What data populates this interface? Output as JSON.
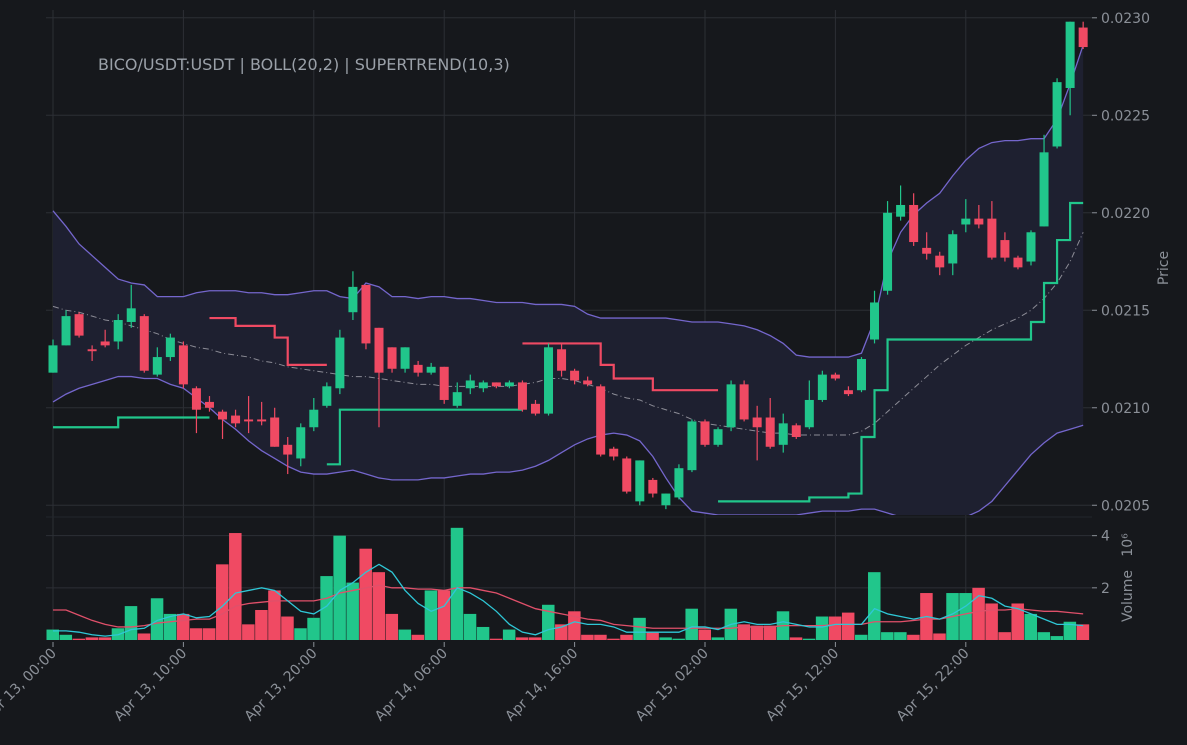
{
  "chart_data": {
    "type": "candlestick",
    "title": "BICO/USDT:USDT | BOLL(20,2) | SUPERTREND(10,3)",
    "ylabel": "Price",
    "categories": [
      "Apr 13, 00:00",
      null,
      null,
      null,
      null,
      null,
      null,
      null,
      null,
      null,
      "Apr 13, 10:00",
      null,
      null,
      null,
      null,
      null,
      null,
      null,
      null,
      null,
      "Apr 13, 20:00",
      null,
      null,
      null,
      null,
      null,
      null,
      null,
      null,
      null,
      "Apr 14, 06:00",
      null,
      null,
      null,
      null,
      null,
      null,
      null,
      null,
      null,
      "Apr 14, 16:00",
      null,
      null,
      null,
      null,
      null,
      null,
      null,
      null,
      null,
      "Apr 15, 02:00",
      null,
      null,
      null,
      null,
      null,
      null,
      null,
      null,
      null,
      "Apr 15, 12:00",
      null,
      null,
      null,
      null,
      null,
      null,
      null,
      null,
      null,
      "Apr 15, 22:00",
      null,
      null,
      null,
      null,
      null,
      null,
      null,
      null,
      null
    ],
    "open": [
      0.02118,
      0.02132,
      0.02148,
      0.0213,
      0.02134,
      0.02134,
      0.02144,
      0.02147,
      0.02117,
      0.02126,
      0.02132,
      0.0211,
      0.02103,
      0.02098,
      0.02096,
      0.02094,
      0.02094,
      0.02095,
      0.02081,
      0.02074,
      0.0209,
      0.02101,
      0.0211,
      0.02149,
      0.02163,
      0.02141,
      0.02131,
      0.0212,
      0.02122,
      0.02118,
      0.02121,
      0.02101,
      0.0211,
      0.0211,
      0.02113,
      0.02111,
      0.02113,
      0.02102,
      0.02097,
      0.0213,
      0.02119,
      0.02114,
      0.02111,
      0.02079,
      0.02074,
      0.02052,
      0.02063,
      0.0205,
      0.02054,
      0.02068,
      0.02093,
      0.02081,
      0.0209,
      0.02112,
      0.02095,
      0.02095,
      0.02081,
      0.02091,
      0.0209,
      0.02104,
      0.02117,
      0.02109,
      0.02109,
      0.02135,
      0.0216,
      0.02198,
      0.02204,
      0.02182,
      0.02178,
      0.02174,
      0.02194,
      0.02197,
      0.02197,
      0.02186,
      0.02177,
      0.02175,
      0.02193,
      0.02234,
      0.02264,
      0.02295
    ],
    "high": [
      0.02135,
      0.0215,
      0.02149,
      0.02132,
      0.0214,
      0.02148,
      0.02163,
      0.02148,
      0.02131,
      0.02138,
      0.02134,
      0.02111,
      0.02106,
      0.02099,
      0.02099,
      0.02106,
      0.02103,
      0.021,
      0.02085,
      0.02092,
      0.02105,
      0.02113,
      0.0214,
      0.0217,
      0.02163,
      0.02141,
      0.02131,
      0.02131,
      0.02124,
      0.02123,
      0.02121,
      0.02113,
      0.02117,
      0.02114,
      0.02113,
      0.02114,
      0.02114,
      0.02104,
      0.02133,
      0.02133,
      0.0212,
      0.02116,
      0.02112,
      0.0208,
      0.02075,
      0.02073,
      0.02064,
      0.02056,
      0.02071,
      0.02094,
      0.02094,
      0.0209,
      0.02114,
      0.02114,
      0.02101,
      0.02105,
      0.02097,
      0.02092,
      0.02114,
      0.02119,
      0.02118,
      0.02111,
      0.02126,
      0.0216,
      0.02206,
      0.02214,
      0.0221,
      0.0219,
      0.0218,
      0.02191,
      0.02207,
      0.02204,
      0.02206,
      0.0219,
      0.02178,
      0.02191,
      0.0224,
      0.02269,
      0.02298,
      0.02298
    ],
    "low": [
      0.02118,
      0.02132,
      0.02136,
      0.02124,
      0.02131,
      0.0213,
      0.02141,
      0.02118,
      0.02116,
      0.02124,
      0.0211,
      0.02087,
      0.02098,
      0.02084,
      0.0209,
      0.02087,
      0.02091,
      0.0208,
      0.02066,
      0.0207,
      0.02088,
      0.021,
      0.02107,
      0.02145,
      0.0213,
      0.0209,
      0.02118,
      0.02118,
      0.02116,
      0.02117,
      0.02102,
      0.021,
      0.02107,
      0.02108,
      0.0211,
      0.0211,
      0.02098,
      0.02096,
      0.02096,
      0.02116,
      0.02112,
      0.02111,
      0.02075,
      0.02073,
      0.02056,
      0.0205,
      0.02054,
      0.02048,
      0.02053,
      0.02067,
      0.0208,
      0.0208,
      0.02088,
      0.02093,
      0.02073,
      0.02079,
      0.02077,
      0.02084,
      0.02089,
      0.02103,
      0.02114,
      0.02106,
      0.02108,
      0.02133,
      0.02158,
      0.02196,
      0.02183,
      0.02176,
      0.02168,
      0.02168,
      0.0219,
      0.02192,
      0.02176,
      0.02175,
      0.02171,
      0.02173,
      0.02193,
      0.02233,
      0.0225,
      0.02284
    ],
    "close": [
      0.02132,
      0.02147,
      0.02137,
      0.02129,
      0.02132,
      0.02145,
      0.02151,
      0.02119,
      0.02126,
      0.02136,
      0.02112,
      0.02099,
      0.021,
      0.02094,
      0.02092,
      0.02093,
      0.02093,
      0.0208,
      0.02076,
      0.0209,
      0.02099,
      0.02111,
      0.02136,
      0.02162,
      0.02133,
      0.02118,
      0.0212,
      0.02131,
      0.02118,
      0.02121,
      0.02104,
      0.02108,
      0.02114,
      0.02113,
      0.02111,
      0.02113,
      0.02099,
      0.02097,
      0.02131,
      0.02119,
      0.02114,
      0.02112,
      0.02076,
      0.02075,
      0.02057,
      0.02073,
      0.02056,
      0.02056,
      0.02069,
      0.02093,
      0.02081,
      0.02089,
      0.02112,
      0.02094,
      0.0209,
      0.0208,
      0.02092,
      0.02085,
      0.02104,
      0.02117,
      0.02115,
      0.02107,
      0.02125,
      0.02154,
      0.022,
      0.02204,
      0.02185,
      0.02179,
      0.02172,
      0.02189,
      0.02197,
      0.02194,
      0.02177,
      0.02177,
      0.02172,
      0.0219,
      0.02231,
      0.02267,
      0.02298,
      0.02285
    ],
    "up_color": "#21c68b",
    "down_color": "#f04a63",
    "ylim": [
      0.02045,
      0.02304
    ],
    "yticks": [
      {
        "value": 0.0205,
        "label": "0.0205"
      },
      {
        "value": 0.021,
        "label": "0.0210"
      },
      {
        "value": 0.0215,
        "label": "0.0215"
      },
      {
        "value": 0.022,
        "label": "0.0220"
      },
      {
        "value": 0.0225,
        "label": "0.0225"
      },
      {
        "value": 0.023,
        "label": "0.0230"
      }
    ],
    "grid": true,
    "bollinger": {
      "color": "#7466cc",
      "fill": "#1e2030",
      "middle_color": "#8c8c96",
      "upper": [
        0.02201,
        0.02193,
        0.02184,
        0.02178,
        0.02172,
        0.02166,
        0.02164,
        0.02163,
        0.02157,
        0.02157,
        0.02157,
        0.02159,
        0.0216,
        0.0216,
        0.0216,
        0.02159,
        0.02159,
        0.02158,
        0.02158,
        0.02159,
        0.0216,
        0.0216,
        0.02157,
        0.02156,
        0.02164,
        0.02162,
        0.02157,
        0.02157,
        0.02156,
        0.02157,
        0.02157,
        0.02156,
        0.02156,
        0.02155,
        0.02154,
        0.02154,
        0.02154,
        0.02153,
        0.02153,
        0.02153,
        0.02152,
        0.02148,
        0.02146,
        0.02146,
        0.02146,
        0.02146,
        0.02146,
        0.02146,
        0.02145,
        0.02144,
        0.02144,
        0.02144,
        0.02143,
        0.02142,
        0.0214,
        0.02137,
        0.02133,
        0.02127,
        0.02126,
        0.02126,
        0.02126,
        0.02126,
        0.02128,
        0.02145,
        0.02175,
        0.0219,
        0.02199,
        0.02205,
        0.0221,
        0.02219,
        0.02227,
        0.02233,
        0.02236,
        0.02237,
        0.02237,
        0.02238,
        0.02238,
        0.02248,
        0.02266,
        0.02286
      ],
      "middle": [
        0.02152,
        0.0215,
        0.02149,
        0.02147,
        0.02145,
        0.02144,
        0.02142,
        0.0214,
        0.02138,
        0.02135,
        0.02133,
        0.02131,
        0.0213,
        0.02128,
        0.02127,
        0.02126,
        0.02124,
        0.02123,
        0.02121,
        0.0212,
        0.02119,
        0.02118,
        0.02117,
        0.02116,
        0.02116,
        0.02115,
        0.02114,
        0.02113,
        0.02112,
        0.02112,
        0.02111,
        0.02111,
        0.02111,
        0.02111,
        0.02111,
        0.02111,
        0.02112,
        0.02113,
        0.02115,
        0.02115,
        0.02114,
        0.02112,
        0.0211,
        0.02107,
        0.02105,
        0.02104,
        0.02101,
        0.02099,
        0.02097,
        0.02094,
        0.02092,
        0.02091,
        0.0209,
        0.02089,
        0.02088,
        0.02087,
        0.02087,
        0.02086,
        0.02086,
        0.02086,
        0.02086,
        0.02086,
        0.02088,
        0.02092,
        0.02098,
        0.02104,
        0.0211,
        0.02116,
        0.02122,
        0.02127,
        0.02132,
        0.02136,
        0.0214,
        0.02143,
        0.02146,
        0.0215,
        0.02156,
        0.02164,
        0.02175,
        0.0219
      ],
      "lower": [
        0.02103,
        0.02107,
        0.0211,
        0.02112,
        0.02114,
        0.02116,
        0.02116,
        0.02115,
        0.02115,
        0.02112,
        0.0211,
        0.02105,
        0.021,
        0.02094,
        0.02089,
        0.02083,
        0.02078,
        0.02074,
        0.0207,
        0.02067,
        0.02066,
        0.02066,
        0.02067,
        0.02068,
        0.02066,
        0.02064,
        0.02063,
        0.02063,
        0.02063,
        0.02064,
        0.02064,
        0.02065,
        0.02066,
        0.02066,
        0.02067,
        0.02067,
        0.02068,
        0.0207,
        0.02073,
        0.02077,
        0.02081,
        0.02084,
        0.02086,
        0.02087,
        0.02086,
        0.02083,
        0.02075,
        0.02064,
        0.02054,
        0.02047,
        0.02046,
        0.02045,
        0.02045,
        0.02045,
        0.02045,
        0.02045,
        0.02045,
        0.02045,
        0.02046,
        0.02047,
        0.02047,
        0.02047,
        0.02048,
        0.02048,
        0.02046,
        0.02044,
        0.02043,
        0.02043,
        0.02044,
        0.02044,
        0.02044,
        0.02047,
        0.02052,
        0.0206,
        0.02068,
        0.02076,
        0.02082,
        0.02087,
        0.02089,
        0.02091
      ]
    },
    "supertrend": {
      "up_color": "#21c68b",
      "down_color": "#f04a63",
      "up": [
        0.0209,
        0.0209,
        0.0209,
        0.0209,
        0.0209,
        0.02095,
        0.02095,
        0.02095,
        0.02095,
        0.02095,
        0.02095,
        0.02095,
        0.02095,
        null,
        null,
        null,
        null,
        null,
        null,
        null,
        null,
        0.02071,
        0.02099,
        0.02099,
        0.02099,
        0.02099,
        0.02099,
        0.02099,
        0.02099,
        0.02099,
        0.02099,
        0.02099,
        0.02099,
        0.02099,
        0.02099,
        0.02099,
        0.02099,
        null,
        null,
        null,
        null,
        null,
        null,
        null,
        null,
        null,
        null,
        null,
        null,
        null,
        null,
        0.02052,
        0.02052,
        0.02052,
        0.02052,
        0.02052,
        0.02052,
        0.02052,
        0.02054,
        0.02054,
        0.02054,
        0.02056,
        0.02085,
        0.02109,
        0.02135,
        0.02135,
        0.02135,
        0.02135,
        0.02135,
        0.02135,
        0.02135,
        0.02135,
        0.02135,
        0.02135,
        0.02135,
        0.02144,
        0.02164,
        0.02186,
        0.02205,
        0.02205
      ],
      "down": [
        null,
        null,
        null,
        null,
        null,
        null,
        null,
        null,
        null,
        null,
        null,
        null,
        0.02146,
        0.02146,
        0.02142,
        0.02142,
        0.02142,
        0.02136,
        0.02122,
        0.02122,
        0.02122,
        0.02122,
        null,
        null,
        null,
        null,
        null,
        null,
        null,
        null,
        null,
        null,
        null,
        null,
        null,
        null,
        0.02133,
        0.02133,
        0.02133,
        0.02133,
        0.02133,
        0.02133,
        0.02122,
        0.02115,
        0.02115,
        0.02115,
        0.02109,
        0.02109,
        0.02109,
        0.02109,
        0.02109,
        0.02109,
        null,
        null,
        null,
        null,
        null,
        null,
        null,
        null,
        null,
        null,
        null,
        null,
        null,
        null,
        null,
        null,
        null,
        null,
        null,
        null,
        null,
        null,
        null,
        null,
        null,
        null,
        null,
        null
      ]
    },
    "volume": {
      "ylabel": "Volume",
      "offset_label": "10⁶",
      "ylim": [
        0,
        4.6
      ],
      "yticks": [
        2,
        4
      ],
      "values": [
        0.4,
        0.2,
        0.05,
        0.1,
        0.1,
        0.45,
        1.3,
        0.25,
        1.6,
        1.0,
        1.0,
        0.45,
        0.45,
        2.9,
        4.1,
        0.6,
        1.15,
        1.9,
        0.9,
        0.45,
        0.85,
        2.45,
        4.0,
        2.2,
        3.5,
        2.6,
        1.0,
        0.4,
        0.2,
        1.9,
        1.9,
        4.3,
        1.0,
        0.5,
        0.05,
        0.4,
        0.1,
        0.1,
        1.35,
        0.6,
        1.1,
        0.2,
        0.2,
        0.05,
        0.2,
        0.85,
        0.3,
        0.1,
        0.05,
        1.2,
        0.4,
        0.1,
        1.2,
        0.6,
        0.55,
        0.55,
        1.1,
        0.1,
        0.05,
        0.9,
        0.9,
        1.05,
        0.2,
        2.6,
        0.3,
        0.3,
        0.2,
        1.8,
        0.25,
        1.8,
        1.8,
        2.0,
        1.4,
        0.3,
        1.4,
        1.0,
        0.3,
        0.15,
        0.7,
        0.6
      ],
      "ma_fast_color": "#2fc7d6",
      "ma_fast": [
        0.35,
        0.35,
        0.3,
        0.2,
        0.15,
        0.2,
        0.4,
        0.45,
        0.75,
        0.9,
        1.0,
        0.85,
        0.9,
        1.3,
        1.8,
        1.9,
        2.0,
        1.9,
        1.5,
        1.1,
        1.0,
        1.3,
        1.9,
        2.2,
        2.6,
        2.9,
        2.6,
        1.9,
        1.4,
        1.1,
        1.3,
        2.0,
        1.8,
        1.5,
        1.1,
        0.6,
        0.3,
        0.2,
        0.4,
        0.5,
        0.7,
        0.6,
        0.6,
        0.5,
        0.3,
        0.3,
        0.3,
        0.3,
        0.3,
        0.5,
        0.5,
        0.4,
        0.6,
        0.7,
        0.6,
        0.6,
        0.7,
        0.6,
        0.5,
        0.5,
        0.6,
        0.6,
        0.6,
        1.2,
        1.0,
        0.9,
        0.8,
        0.9,
        0.8,
        1.0,
        1.3,
        1.7,
        1.6,
        1.3,
        1.2,
        1.0,
        0.8,
        0.6,
        0.6,
        0.55
      ],
      "ma_slow_color": "#e0506a",
      "ma_slow": [
        1.15,
        1.15,
        0.95,
        0.75,
        0.6,
        0.5,
        0.5,
        0.55,
        0.65,
        0.7,
        0.75,
        0.8,
        0.8,
        1.0,
        1.3,
        1.4,
        1.45,
        1.5,
        1.5,
        1.5,
        1.5,
        1.6,
        1.8,
        1.9,
        2.0,
        2.1,
        2.0,
        2.0,
        1.95,
        1.95,
        1.9,
        2.0,
        2.0,
        1.9,
        1.8,
        1.6,
        1.4,
        1.2,
        1.1,
        1.0,
        0.9,
        0.8,
        0.75,
        0.6,
        0.55,
        0.5,
        0.45,
        0.45,
        0.45,
        0.45,
        0.45,
        0.45,
        0.45,
        0.5,
        0.5,
        0.5,
        0.55,
        0.55,
        0.55,
        0.55,
        0.6,
        0.6,
        0.6,
        0.7,
        0.7,
        0.7,
        0.75,
        0.8,
        0.8,
        0.9,
        1.0,
        1.1,
        1.15,
        1.15,
        1.2,
        1.15,
        1.1,
        1.1,
        1.05,
        1.0
      ]
    }
  }
}
